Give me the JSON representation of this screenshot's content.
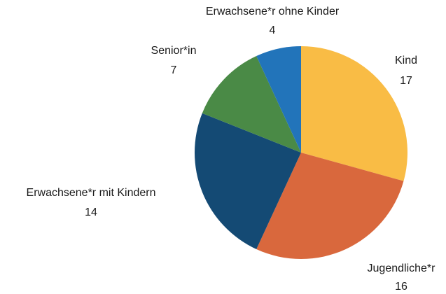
{
  "chart_data": {
    "type": "pie",
    "slices": [
      {
        "label": "Kind",
        "value": 17,
        "color": "#F9BC45"
      },
      {
        "label": "Jugendliche*r",
        "value": 16,
        "color": "#D9683D"
      },
      {
        "label": "Erwachsene*r mit Kindern",
        "value": 14,
        "color": "#144A74"
      },
      {
        "label": "Senior*in",
        "value": 7,
        "color": "#4A8A46"
      },
      {
        "label": "Erwachsene*r ohne Kinder",
        "value": 4,
        "color": "#2274BA"
      }
    ],
    "start": "top",
    "direction": "clockwise"
  }
}
